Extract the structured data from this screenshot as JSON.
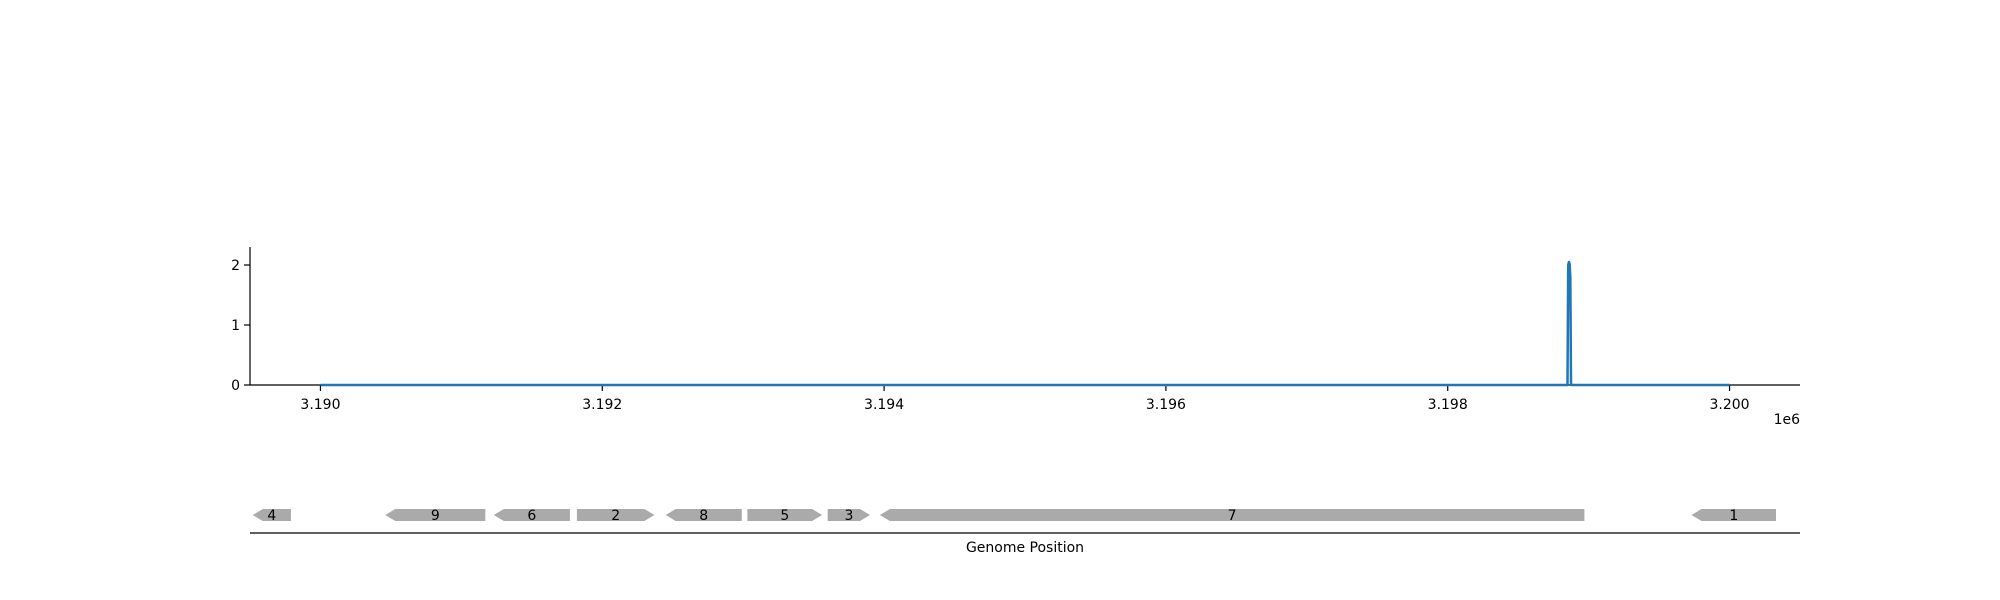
{
  "chart_data": [
    {
      "type": "line",
      "x_offset_label": "1e6",
      "xlim": [
        3189500,
        3200500
      ],
      "ylim": [
        0,
        2.3
      ],
      "x_ticks": [
        3190000,
        3192000,
        3194000,
        3196000,
        3198000,
        3200000
      ],
      "x_tick_labels": [
        "3.190",
        "3.192",
        "3.194",
        "3.196",
        "3.198",
        "3.200"
      ],
      "y_ticks": [
        0,
        1,
        2
      ],
      "y_tick_labels": [
        "0",
        "1",
        "2"
      ],
      "grid": false,
      "color": "#1f77b4",
      "series": [
        {
          "x": [
            3190000,
            3198850,
            3198855,
            3198860,
            3198865,
            3198870,
            3198875,
            3198880,
            3200000
          ],
          "y": [
            0,
            0,
            2.0,
            2.05,
            2.02,
            1.8,
            0,
            0,
            0
          ]
        }
      ]
    },
    {
      "type": "gene-track",
      "xlabel": "Genome Position",
      "xlim": [
        3189500,
        3200500
      ],
      "feature_color": "#aaaaaa",
      "features": [
        {
          "label": "4",
          "start": 3189520,
          "end": 3189790,
          "strand": -1
        },
        {
          "label": "9",
          "start": 3190460,
          "end": 3191170,
          "strand": -1
        },
        {
          "label": "6",
          "start": 3191230,
          "end": 3191770,
          "strand": -1
        },
        {
          "label": "2",
          "start": 3191820,
          "end": 3192370,
          "strand": 1
        },
        {
          "label": "8",
          "start": 3192450,
          "end": 3192990,
          "strand": -1
        },
        {
          "label": "5",
          "start": 3193030,
          "end": 3193560,
          "strand": 1
        },
        {
          "label": "3",
          "start": 3193600,
          "end": 3193900,
          "strand": 1
        },
        {
          "label": "7",
          "start": 3193970,
          "end": 3198970,
          "strand": -1
        },
        {
          "label": "1",
          "start": 3199730,
          "end": 3200330,
          "strand": -1
        }
      ]
    }
  ]
}
